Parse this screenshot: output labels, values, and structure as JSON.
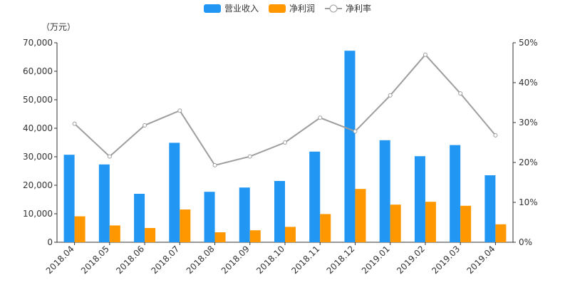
{
  "chart_data": {
    "type": "bar",
    "unit_label": "（万元）",
    "categories": [
      "2018.04",
      "2018.05",
      "2018.06",
      "2018.07",
      "2018.08",
      "2018.09",
      "2018.10",
      "2018.11",
      "2018.12",
      "2019.01",
      "2019.02",
      "2019.03",
      "2019.04"
    ],
    "series": [
      {
        "name": "营业收入",
        "kind": "bar",
        "axis": "left",
        "color": "#2196f3",
        "values": [
          30700,
          27300,
          17000,
          34900,
          17700,
          19200,
          21500,
          31800,
          67200,
          35800,
          30200,
          34100,
          23500
        ]
      },
      {
        "name": "净利润",
        "kind": "bar",
        "axis": "left",
        "color": "#ff9800",
        "values": [
          9100,
          5900,
          5000,
          11500,
          3500,
          4200,
          5400,
          9900,
          18700,
          13200,
          14200,
          12800,
          6300
        ]
      },
      {
        "name": "净利率",
        "kind": "line",
        "axis": "right",
        "color": "#9e9e9e",
        "values": [
          29.7,
          21.5,
          29.3,
          33.0,
          19.3,
          21.5,
          25.0,
          31.2,
          27.8,
          36.8,
          47.0,
          37.3,
          26.8
        ]
      }
    ],
    "y_left": {
      "min": 0,
      "max": 70000,
      "ticks": [
        0,
        10000,
        20000,
        30000,
        40000,
        50000,
        60000,
        70000
      ],
      "tick_labels": [
        "0",
        "10,000",
        "20,000",
        "30,000",
        "40,000",
        "50,000",
        "60,000",
        "70,000"
      ]
    },
    "y_right": {
      "min": 0,
      "max": 50,
      "ticks": [
        0,
        10,
        20,
        30,
        40,
        50
      ],
      "tick_labels": [
        "0%",
        "10%",
        "20%",
        "30%",
        "40%",
        "50%"
      ]
    },
    "legend_position": "top-center",
    "grid": false
  }
}
